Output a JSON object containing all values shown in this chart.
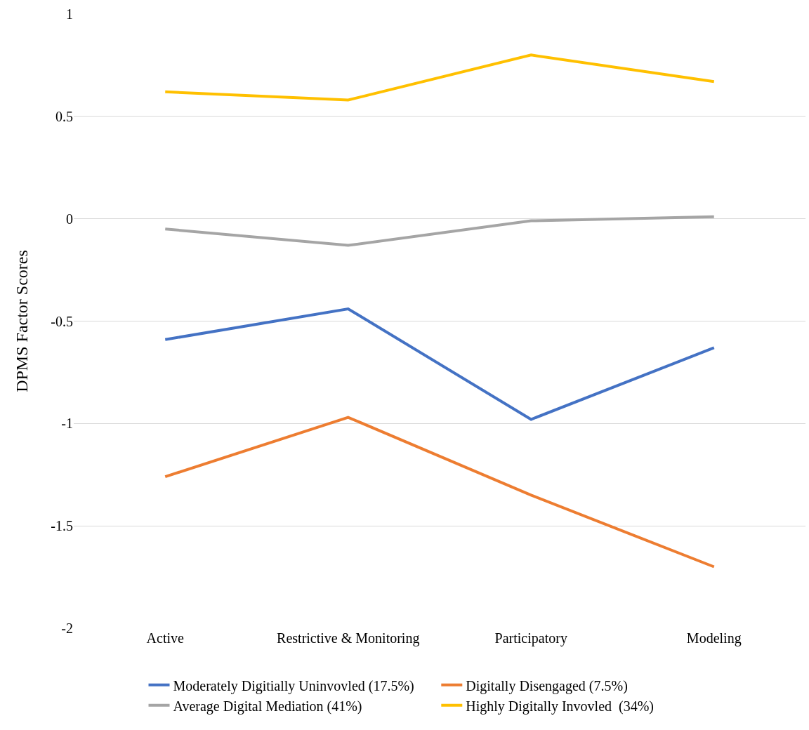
{
  "chart_data": {
    "type": "line",
    "ylabel": "DPMS Factor Scores",
    "categories": [
      "Active",
      "Restrictive & Monitoring",
      "Participatory",
      "Modeling"
    ],
    "series": [
      {
        "name": "Moderately Digitially Uninvovled (17.5%)",
        "color": "#4472c4",
        "values": [
          -0.59,
          -0.44,
          -0.98,
          -0.63
        ]
      },
      {
        "name": "Digitally Disengaged (7.5%)",
        "color": "#ed7d31",
        "values": [
          -1.26,
          -0.97,
          -1.35,
          -1.7
        ]
      },
      {
        "name": "Average Digital Mediation (41%)",
        "color": "#a5a5a5",
        "values": [
          -0.05,
          -0.13,
          -0.01,
          0.01
        ]
      },
      {
        "name": "Highly Digitally Invovled  (34%)",
        "color": "#ffc000",
        "values": [
          0.62,
          0.58,
          0.8,
          0.67
        ]
      }
    ],
    "ylim": [
      -2,
      1
    ],
    "yticks": [
      -2,
      -1.5,
      -1,
      -0.5,
      0,
      0.5,
      1
    ],
    "grid": "y",
    "legend": "bottom",
    "marker": "none",
    "line_style": "solid"
  }
}
